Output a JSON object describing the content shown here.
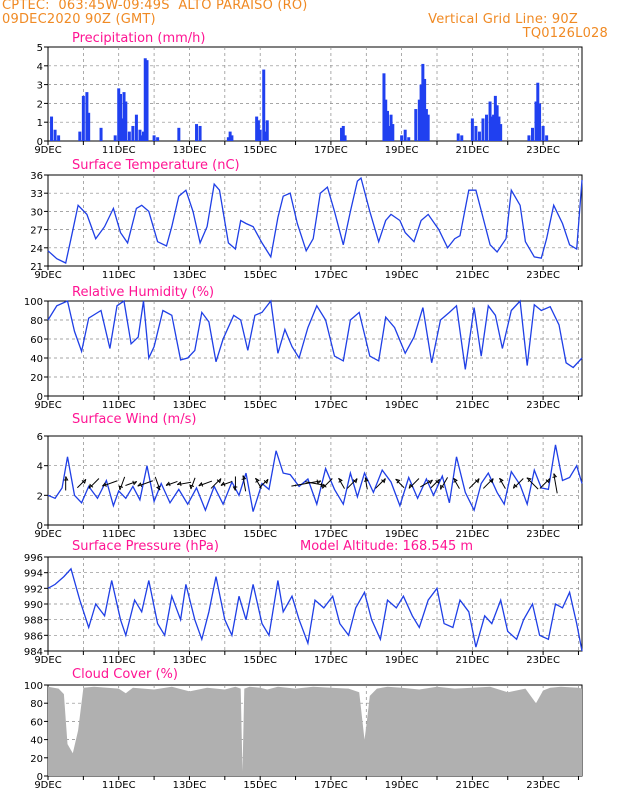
{
  "header": {
    "station": "CPTEC:  063:45W-09:49S  ALTO PARAISO (RO)",
    "run": "09DEC2020 90Z (GMT)",
    "grid_note": "Vertical Grid Line: 90Z",
    "code": "TQ0126L028"
  },
  "colors": {
    "header": "#f08a24",
    "title": "#ff1493",
    "line": "#1f3fe6",
    "bar": "#2040f0",
    "cloud": "#b0b0b0"
  },
  "chart_data": [
    {
      "type": "bar",
      "title": "Precipitation (mm/h)",
      "ylim": [
        0,
        5
      ],
      "yticks": [
        0,
        1,
        2,
        3,
        4,
        5
      ],
      "xlim": [
        9,
        24.1
      ],
      "xticks": [
        "9DEC",
        "11DEC",
        "13DEC",
        "15DEC",
        "17DEC",
        "19DEC",
        "21DEC",
        "23DEC"
      ],
      "x": [
        9.1,
        9.2,
        9.3,
        9.9,
        10.0,
        10.1,
        10.15,
        10.5,
        10.9,
        11.0,
        11.05,
        11.1,
        11.15,
        11.2,
        11.3,
        11.4,
        11.5,
        11.6,
        11.65,
        11.7,
        11.75,
        11.8,
        12.0,
        12.1,
        12.7,
        13.2,
        13.3,
        14.1,
        14.15,
        14.2,
        14.9,
        14.95,
        15.0,
        15.1,
        15.15,
        15.2,
        17.3,
        17.35,
        17.4,
        18.5,
        18.55,
        18.6,
        18.65,
        18.7,
        18.75,
        19.0,
        19.1,
        19.2,
        19.4,
        19.5,
        19.55,
        19.6,
        19.65,
        19.7,
        19.75,
        20.6,
        20.7,
        21.0,
        21.1,
        21.2,
        21.3,
        21.4,
        21.5,
        21.55,
        21.6,
        21.65,
        21.7,
        21.75,
        21.8,
        22.6,
        22.7,
        22.8,
        22.85,
        22.9,
        23.0,
        23.1
      ],
      "values": [
        1.3,
        0.6,
        0.3,
        0.5,
        2.4,
        2.6,
        1.5,
        0.7,
        0.3,
        2.8,
        2.5,
        1.2,
        2.6,
        2.1,
        0.5,
        0.8,
        1.4,
        0.6,
        0.3,
        0.5,
        4.4,
        4.3,
        0.3,
        0.2,
        0.7,
        0.9,
        0.8,
        0.2,
        0.5,
        0.3,
        1.3,
        1.1,
        0.6,
        3.8,
        0.5,
        1.1,
        0.7,
        0.8,
        0.3,
        3.6,
        2.2,
        1.6,
        0.8,
        1.4,
        0.9,
        0.3,
        0.6,
        0.2,
        1.7,
        2.2,
        3.0,
        4.1,
        3.3,
        1.7,
        1.4,
        0.4,
        0.3,
        1.2,
        0.8,
        0.5,
        1.2,
        1.4,
        2.1,
        1.3,
        1.4,
        2.4,
        1.9,
        1.3,
        0.9,
        0.3,
        0.7,
        2.1,
        3.1,
        2.0,
        0.8,
        0.3
      ]
    },
    {
      "type": "line",
      "title": "Surface Temperature (nC)",
      "ylim": [
        21,
        36
      ],
      "yticks": [
        21,
        24,
        27,
        30,
        33,
        36
      ],
      "xlim": [
        9,
        24.1
      ],
      "xticks": [
        "9DEC",
        "11DEC",
        "13DEC",
        "15DEC",
        "17DEC",
        "19DEC",
        "21DEC",
        "23DEC"
      ],
      "x": [
        9.0,
        9.25,
        9.5,
        9.65,
        9.85,
        10.1,
        10.35,
        10.6,
        10.85,
        11.05,
        11.25,
        11.5,
        11.65,
        11.85,
        12.1,
        12.35,
        12.5,
        12.7,
        12.9,
        13.1,
        13.3,
        13.5,
        13.7,
        13.85,
        14.1,
        14.3,
        14.45,
        14.6,
        14.8,
        15.05,
        15.3,
        15.5,
        15.65,
        15.85,
        16.05,
        16.3,
        16.5,
        16.7,
        16.9,
        17.1,
        17.35,
        17.55,
        17.75,
        17.85,
        18.1,
        18.35,
        18.55,
        18.7,
        18.95,
        19.1,
        19.35,
        19.55,
        19.75,
        20.05,
        20.3,
        20.5,
        20.65,
        20.9,
        21.1,
        21.3,
        21.5,
        21.7,
        21.95,
        22.1,
        22.35,
        22.5,
        22.75,
        22.95,
        23.1,
        23.3,
        23.55,
        23.75,
        23.95,
        24.1
      ],
      "values": [
        23.5,
        22.2,
        21.5,
        25.5,
        31.0,
        29.5,
        25.5,
        27.5,
        30.5,
        26.5,
        24.8,
        30.5,
        31.0,
        30.0,
        25.0,
        24.3,
        27.5,
        32.5,
        33.5,
        30.0,
        24.8,
        27.5,
        34.5,
        33.5,
        24.8,
        23.8,
        28.5,
        28.0,
        27.5,
        24.8,
        22.5,
        29.0,
        32.5,
        33.0,
        28.0,
        23.5,
        25.5,
        33.0,
        34.0,
        30.0,
        24.5,
        30.0,
        35.0,
        35.5,
        30.0,
        25.0,
        28.5,
        29.5,
        28.5,
        26.5,
        25.0,
        28.5,
        29.5,
        27.0,
        24.0,
        25.5,
        26.0,
        33.5,
        33.5,
        29.0,
        24.5,
        23.3,
        25.5,
        33.5,
        31.0,
        25.0,
        22.5,
        22.3,
        25.5,
        31.0,
        28.0,
        24.5,
        23.8,
        35.2
      ]
    },
    {
      "type": "line",
      "title": "Relative Humidity (%)",
      "ylim": [
        0,
        100
      ],
      "yticks": [
        0,
        20,
        40,
        60,
        80,
        100
      ],
      "xlim": [
        9,
        24.1
      ],
      "xticks": [
        "9DEC",
        "11DEC",
        "13DEC",
        "15DEC",
        "17DEC",
        "19DEC",
        "21DEC",
        "23DEC"
      ],
      "x": [
        9.0,
        9.25,
        9.55,
        9.75,
        9.95,
        10.15,
        10.5,
        10.75,
        10.95,
        11.15,
        11.35,
        11.55,
        11.7,
        11.85,
        12.0,
        12.25,
        12.5,
        12.75,
        12.95,
        13.15,
        13.35,
        13.55,
        13.75,
        13.95,
        14.25,
        14.45,
        14.65,
        14.85,
        15.05,
        15.3,
        15.5,
        15.7,
        15.9,
        16.1,
        16.35,
        16.6,
        16.85,
        17.1,
        17.35,
        17.55,
        17.8,
        18.1,
        18.35,
        18.55,
        18.8,
        19.1,
        19.35,
        19.6,
        19.85,
        20.1,
        20.35,
        20.55,
        20.8,
        21.05,
        21.25,
        21.45,
        21.65,
        21.85,
        22.1,
        22.35,
        22.55,
        22.75,
        22.95,
        23.2,
        23.45,
        23.65,
        23.85,
        24.1
      ],
      "values": [
        80,
        95,
        100,
        68,
        47,
        82,
        90,
        50,
        95,
        100,
        55,
        62,
        100,
        40,
        52,
        90,
        85,
        38,
        40,
        48,
        88,
        78,
        36,
        60,
        85,
        80,
        48,
        85,
        88,
        100,
        45,
        70,
        52,
        40,
        72,
        95,
        80,
        42,
        37,
        80,
        88,
        42,
        37,
        83,
        72,
        45,
        62,
        93,
        35,
        80,
        88,
        95,
        28,
        93,
        42,
        95,
        85,
        50,
        90,
        100,
        32,
        96,
        90,
        94,
        75,
        35,
        30,
        40
      ]
    },
    {
      "type": "line",
      "title": "Surface Wind (m/s)",
      "ylim": [
        0,
        6
      ],
      "yticks": [
        0,
        2,
        4,
        6
      ],
      "xlim": [
        9,
        24.1
      ],
      "xticks": [
        "9DEC",
        "11DEC",
        "13DEC",
        "15DEC",
        "17DEC",
        "19DEC",
        "21DEC",
        "23DEC"
      ],
      "x": [
        9.0,
        9.2,
        9.4,
        9.55,
        9.75,
        9.95,
        10.15,
        10.4,
        10.65,
        10.85,
        11.0,
        11.2,
        11.4,
        11.6,
        11.8,
        12.0,
        12.2,
        12.45,
        12.7,
        12.95,
        13.2,
        13.45,
        13.7,
        13.95,
        14.2,
        14.4,
        14.6,
        14.8,
        15.05,
        15.25,
        15.45,
        15.65,
        15.85,
        16.1,
        16.35,
        16.6,
        16.85,
        17.1,
        17.35,
        17.55,
        17.75,
        17.95,
        18.2,
        18.45,
        18.7,
        18.95,
        19.2,
        19.45,
        19.7,
        19.9,
        20.15,
        20.35,
        20.55,
        20.8,
        21.05,
        21.25,
        21.45,
        21.7,
        21.9,
        22.1,
        22.35,
        22.55,
        22.75,
        22.95,
        23.15,
        23.35,
        23.55,
        23.75,
        23.95,
        24.1
      ],
      "values": [
        2.0,
        1.8,
        2.5,
        4.6,
        2.0,
        1.5,
        2.6,
        1.8,
        3.0,
        1.3,
        2.3,
        1.8,
        2.6,
        1.7,
        4.0,
        1.6,
        2.8,
        1.5,
        2.4,
        1.4,
        2.5,
        1.0,
        2.6,
        1.4,
        2.9,
        2.0,
        3.5,
        0.9,
        2.8,
        2.4,
        5.0,
        3.5,
        3.4,
        2.6,
        3.1,
        1.4,
        3.8,
        2.4,
        1.4,
        3.5,
        1.9,
        3.5,
        2.2,
        3.7,
        2.9,
        1.3,
        3.2,
        1.8,
        3.1,
        2.0,
        3.3,
        1.5,
        4.6,
        2.2,
        1.0,
        2.8,
        3.5,
        2.2,
        1.4,
        3.6,
        2.7,
        1.4,
        3.7,
        2.5,
        2.4,
        5.4,
        3.0,
        3.2,
        4.0,
        2.8
      ],
      "arrows_x": [
        9.5,
        9.95,
        10.3,
        10.75,
        11.1,
        11.35,
        11.75,
        12.1,
        12.5,
        12.85,
        13.1,
        13.45,
        13.75,
        14.05,
        14.3,
        14.55,
        14.95,
        15.1,
        16.3,
        16.55,
        16.9,
        17.3,
        17.6,
        18.0,
        18.4,
        18.95,
        19.35,
        19.7,
        19.95,
        20.2,
        20.55,
        21.05,
        21.45,
        21.85,
        22.3,
        22.7,
        23.05,
        23.35
      ],
      "arrow_dir_deg": [
        90,
        45,
        225,
        200,
        250,
        20,
        200,
        290,
        200,
        190,
        250,
        200,
        45,
        200,
        270,
        100,
        120,
        45,
        10,
        350,
        225,
        120,
        45,
        100,
        45,
        135,
        225,
        30,
        45,
        240,
        120,
        45,
        45,
        120,
        225,
        135,
        45,
        100
      ],
      "arrow_len": [
        14,
        12,
        14,
        16,
        14,
        12,
        16,
        14,
        12,
        14,
        12,
        14,
        14,
        12,
        14,
        16,
        12,
        12,
        30,
        20,
        14,
        12,
        14,
        12,
        14,
        12,
        14,
        14,
        12,
        14,
        12,
        14,
        14,
        12,
        14,
        16,
        14,
        20
      ]
    },
    {
      "type": "line",
      "title": "Surface Pressure (hPa)",
      "annotation": "Model Altitude: 168.545 m",
      "ylim": [
        984,
        996
      ],
      "yticks": [
        984,
        986,
        988,
        990,
        992,
        994,
        996
      ],
      "xlim": [
        9,
        24.1
      ],
      "xticks": [
        "9DEC",
        "11DEC",
        "13DEC",
        "15DEC",
        "17DEC",
        "19DEC",
        "21DEC",
        "23DEC"
      ],
      "x": [
        9.0,
        9.2,
        9.45,
        9.65,
        9.9,
        10.15,
        10.35,
        10.6,
        10.8,
        11.05,
        11.2,
        11.45,
        11.65,
        11.85,
        12.1,
        12.3,
        12.5,
        12.75,
        12.9,
        13.15,
        13.35,
        13.55,
        13.75,
        14.0,
        14.2,
        14.4,
        14.6,
        14.8,
        15.05,
        15.25,
        15.5,
        15.65,
        15.9,
        16.1,
        16.35,
        16.55,
        16.8,
        17.05,
        17.25,
        17.5,
        17.7,
        17.95,
        18.15,
        18.4,
        18.6,
        18.85,
        19.05,
        19.3,
        19.5,
        19.75,
        20.0,
        20.2,
        20.45,
        20.65,
        20.9,
        21.1,
        21.35,
        21.55,
        21.8,
        22.0,
        22.25,
        22.45,
        22.7,
        22.9,
        23.15,
        23.35,
        23.55,
        23.75,
        23.95,
        24.1
      ],
      "values": [
        992.0,
        992.5,
        993.5,
        994.5,
        990.5,
        987.0,
        990.0,
        988.5,
        993.0,
        988.0,
        986.0,
        990.5,
        989.0,
        993.0,
        987.5,
        986.0,
        991.0,
        988.0,
        992.5,
        988.0,
        985.5,
        989.0,
        993.5,
        988.0,
        986.0,
        991.0,
        988.0,
        992.5,
        987.5,
        986.0,
        993.0,
        989.0,
        991.0,
        988.0,
        985.0,
        990.5,
        989.5,
        991.0,
        987.5,
        986.0,
        989.5,
        991.5,
        988.0,
        985.5,
        990.5,
        989.5,
        991.0,
        988.5,
        987.0,
        990.5,
        992.0,
        987.5,
        987.0,
        990.5,
        989.0,
        984.5,
        988.5,
        987.5,
        990.5,
        986.5,
        985.5,
        988.0,
        990.0,
        986.0,
        985.5,
        990.0,
        989.5,
        991.5,
        987.5,
        984.0
      ]
    },
    {
      "type": "area",
      "title": "Cloud Cover (%)",
      "ylim": [
        0,
        100
      ],
      "yticks": [
        0,
        20,
        40,
        60,
        80,
        100
      ],
      "xlim": [
        9,
        24.1
      ],
      "xticks": [
        "9DEC",
        "11DEC",
        "13DEC",
        "15DEC",
        "17DEC",
        "19DEC",
        "21DEC",
        "23DEC"
      ],
      "x": [
        9.0,
        9.3,
        9.45,
        9.55,
        9.7,
        9.85,
        10.0,
        10.3,
        11.0,
        11.2,
        11.4,
        12.0,
        12.5,
        13.0,
        13.5,
        14.0,
        14.3,
        14.45,
        14.5,
        14.55,
        14.7,
        15.0,
        15.2,
        15.5,
        16.0,
        16.5,
        17.0,
        17.5,
        17.8,
        17.95,
        18.0,
        18.1,
        18.3,
        18.6,
        19.0,
        19.5,
        20.0,
        20.5,
        21.0,
        21.5,
        22.0,
        22.5,
        22.8,
        23.0,
        23.2,
        23.5,
        24.0,
        24.1
      ],
      "values": [
        98,
        96,
        90,
        35,
        25,
        50,
        97,
        98,
        96,
        91,
        97,
        95,
        98,
        93,
        97,
        95,
        98,
        96,
        5,
        96,
        98,
        97,
        95,
        98,
        96,
        98,
        97,
        96,
        92,
        40,
        55,
        88,
        96,
        98,
        97,
        95,
        98,
        96,
        97,
        98,
        92,
        96,
        80,
        94,
        97,
        98,
        97,
        96
      ]
    }
  ]
}
